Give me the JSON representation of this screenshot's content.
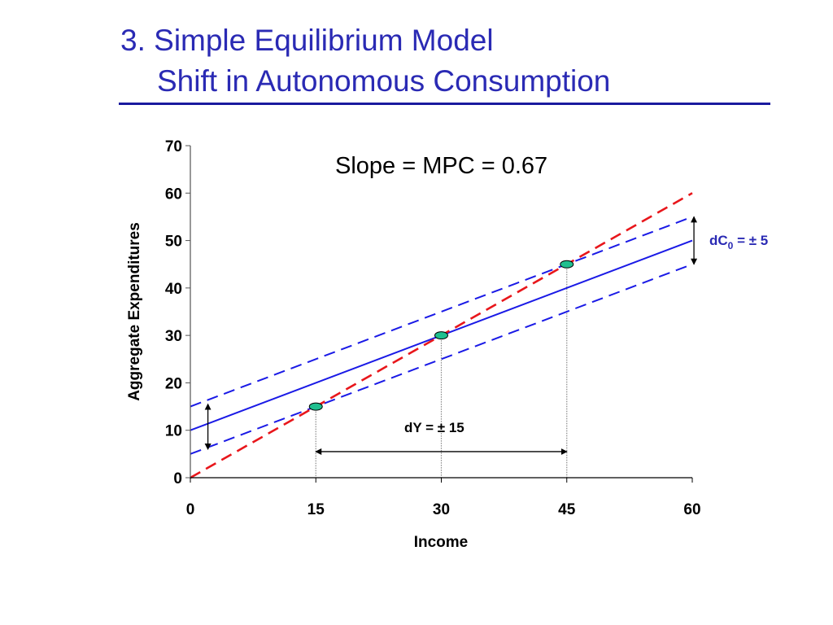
{
  "slide": {
    "title_line1": "3. Simple Equilibrium Model",
    "title_line2": "Shift in Autonomous Consumption"
  },
  "chart_data": {
    "type": "line",
    "title": "",
    "xlabel": "Income",
    "ylabel": "Aggregate Expenditures",
    "xlim": [
      0,
      60
    ],
    "ylim": [
      0,
      70
    ],
    "x_ticks": [
      0,
      15,
      30,
      45,
      60
    ],
    "y_ticks": [
      0,
      10,
      20,
      30,
      40,
      50,
      60,
      70
    ],
    "grid": false,
    "series": [
      {
        "style": "solid",
        "color": "#1a1ae6",
        "x": [
          0,
          60
        ],
        "y": [
          10,
          50
        ]
      },
      {
        "style": "dashed",
        "color": "#1a1ae6",
        "x": [
          0,
          60
        ],
        "y": [
          15,
          55
        ]
      },
      {
        "style": "dashed",
        "color": "#1a1ae6",
        "x": [
          0,
          60
        ],
        "y": [
          5,
          45
        ]
      },
      {
        "style": "dashed",
        "color": "#e8161b",
        "x": [
          0,
          60
        ],
        "y": [
          0,
          60
        ]
      }
    ],
    "equilibrium_points": {
      "color": "#1fbf8f",
      "x": [
        15,
        30,
        45
      ],
      "y": [
        15,
        30,
        45
      ]
    },
    "annotations": {
      "slope": "Slope = MPC = 0.67",
      "dC0_prefix": "dC",
      "dC0_sub": "0",
      "dC0_suffix": " = ± 5",
      "dY": "dY = ± 15"
    }
  }
}
